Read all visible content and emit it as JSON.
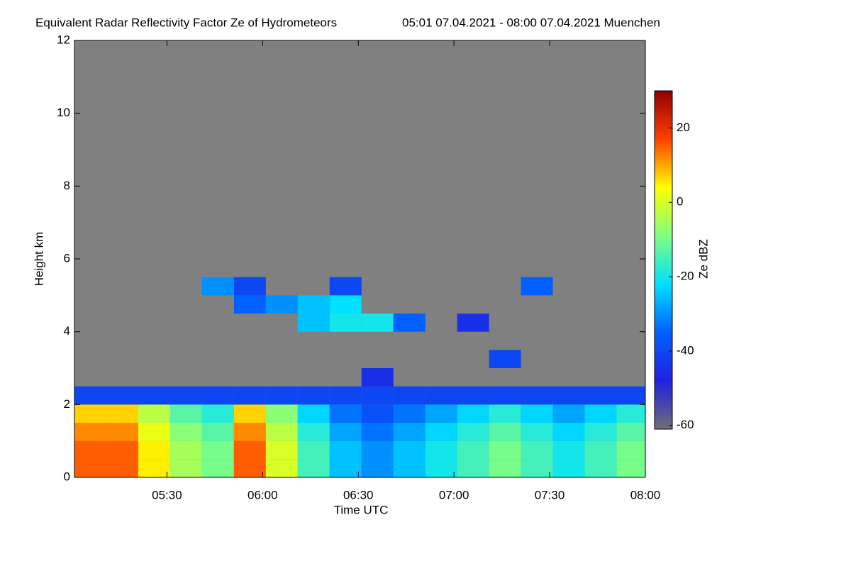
{
  "chart_data": {
    "type": "heatmap",
    "title": "Equivalent Radar Reflectivity Factor Ze of Hydrometeors",
    "subtitle": "05:01 07.04.2021 - 08:00 07.04.2021 Muenchen",
    "x_label": "Time UTC",
    "y_label": "Height km",
    "colorbar_label": "Ze dBZ",
    "background": "#808080",
    "colormap": [
      "#6e6e78",
      "#2020e0",
      "#0060ff",
      "#00e0ff",
      "#80ff80",
      "#ffff00",
      "#ff4000",
      "#900000"
    ],
    "xlim": [
      301,
      480
    ],
    "xticks": [
      {
        "value": 330,
        "label": "05:30"
      },
      {
        "value": 360,
        "label": "06:00"
      },
      {
        "value": 390,
        "label": "06:30"
      },
      {
        "value": 420,
        "label": "07:00"
      },
      {
        "value": 450,
        "label": "07:30"
      },
      {
        "value": 480,
        "label": "08:00"
      }
    ],
    "ylim": [
      0,
      12
    ],
    "yticks": [
      0,
      2,
      4,
      6,
      8,
      10,
      12
    ],
    "zlim": [
      -61,
      30
    ],
    "zticks": [
      -60,
      -40,
      -20,
      0,
      20
    ],
    "x": [
      306,
      316,
      326,
      336,
      346,
      356,
      366,
      376,
      386,
      396,
      406,
      416,
      426,
      436,
      446,
      456,
      466,
      476
    ],
    "y": [
      0.25,
      0.75,
      1.25,
      1.75,
      2.25,
      2.75,
      3.25,
      3.75,
      4.25,
      4.75,
      5.25,
      5.75
    ],
    "z": [
      [
        15,
        15,
        5,
        -5,
        -10,
        15,
        0,
        -15,
        -25,
        -30,
        -25,
        -20,
        -15,
        -10,
        -15,
        -20,
        -15,
        -10
      ],
      [
        15,
        15,
        5,
        -5,
        -10,
        15,
        0,
        -15,
        -25,
        -30,
        -25,
        -20,
        -15,
        -10,
        -15,
        -20,
        -15,
        -10
      ],
      [
        12,
        12,
        2,
        -8,
        -13,
        12,
        -3,
        -18,
        -28,
        -33,
        -28,
        -23,
        -18,
        -13,
        -18,
        -23,
        -18,
        -13
      ],
      [
        7,
        7,
        -3,
        -13,
        -18,
        7,
        -8,
        -23,
        -33,
        -38,
        -33,
        -28,
        -23,
        -18,
        -23,
        -28,
        -23,
        -18
      ],
      [
        -40,
        -40,
        -40,
        -40,
        -40,
        -40,
        -40,
        -40,
        -40,
        -40,
        -40,
        -40,
        -40,
        -40,
        -40,
        -40,
        -40,
        -40
      ],
      [
        null,
        null,
        null,
        null,
        null,
        null,
        null,
        null,
        null,
        -45,
        null,
        null,
        null,
        null,
        null,
        null,
        null,
        null
      ],
      [
        null,
        null,
        null,
        null,
        null,
        null,
        null,
        null,
        null,
        null,
        null,
        null,
        null,
        -40,
        null,
        null,
        null,
        null
      ],
      [
        null,
        null,
        null,
        null,
        null,
        null,
        null,
        null,
        null,
        null,
        null,
        null,
        null,
        null,
        null,
        null,
        null,
        null
      ],
      [
        null,
        null,
        null,
        null,
        null,
        null,
        null,
        -25,
        -20,
        -20,
        -35,
        null,
        -45,
        null,
        null,
        null,
        null,
        null
      ],
      [
        null,
        null,
        null,
        null,
        null,
        -35,
        -30,
        -25,
        -22,
        null,
        null,
        null,
        null,
        null,
        null,
        null,
        null,
        null
      ],
      [
        null,
        null,
        null,
        null,
        -30,
        -40,
        null,
        null,
        -40,
        null,
        null,
        null,
        null,
        null,
        -35,
        null,
        null,
        null
      ],
      [
        null,
        null,
        null,
        null,
        null,
        null,
        null,
        null,
        null,
        null,
        null,
        null,
        null,
        null,
        null,
        null,
        null,
        null
      ]
    ]
  }
}
